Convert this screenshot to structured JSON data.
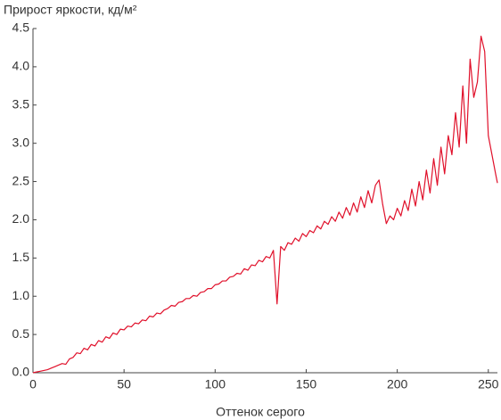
{
  "chart_data": {
    "type": "line",
    "title": "Прирост яркости, кд/м²",
    "x_label": "Оттенок серого",
    "x": [
      0,
      2,
      4,
      6,
      8,
      10,
      12,
      14,
      16,
      18,
      20,
      22,
      24,
      26,
      28,
      30,
      32,
      34,
      36,
      38,
      40,
      42,
      44,
      46,
      48,
      50,
      52,
      54,
      56,
      58,
      60,
      62,
      64,
      66,
      68,
      70,
      72,
      74,
      76,
      78,
      80,
      82,
      84,
      86,
      88,
      90,
      92,
      94,
      96,
      98,
      100,
      102,
      104,
      106,
      108,
      110,
      112,
      114,
      116,
      118,
      120,
      122,
      124,
      126,
      128,
      130,
      132,
      134,
      136,
      138,
      140,
      142,
      144,
      146,
      148,
      150,
      152,
      154,
      156,
      158,
      160,
      162,
      164,
      166,
      168,
      170,
      172,
      174,
      176,
      178,
      180,
      182,
      184,
      186,
      188,
      190,
      192,
      194,
      196,
      198,
      200,
      202,
      204,
      206,
      208,
      210,
      212,
      214,
      216,
      218,
      220,
      222,
      224,
      226,
      228,
      230,
      232,
      234,
      236,
      238,
      240,
      242,
      244,
      246,
      248,
      250,
      252,
      254,
      255
    ],
    "series": [
      {
        "name": "Прирост яркости",
        "color": "#e0102a",
        "values": [
          0,
          0.01,
          0.02,
          0.03,
          0.04,
          0.06,
          0.08,
          0.1,
          0.12,
          0.11,
          0.18,
          0.2,
          0.26,
          0.25,
          0.32,
          0.3,
          0.37,
          0.35,
          0.42,
          0.4,
          0.47,
          0.45,
          0.52,
          0.5,
          0.57,
          0.56,
          0.61,
          0.6,
          0.65,
          0.64,
          0.69,
          0.68,
          0.74,
          0.73,
          0.78,
          0.77,
          0.82,
          0.84,
          0.88,
          0.87,
          0.92,
          0.93,
          0.97,
          0.97,
          1.01,
          1.0,
          1.05,
          1.06,
          1.1,
          1.1,
          1.15,
          1.16,
          1.2,
          1.2,
          1.25,
          1.26,
          1.3,
          1.29,
          1.36,
          1.34,
          1.41,
          1.4,
          1.47,
          1.45,
          1.52,
          1.5,
          1.6,
          0.9,
          1.65,
          1.6,
          1.7,
          1.68,
          1.76,
          1.72,
          1.82,
          1.78,
          1.86,
          1.83,
          1.92,
          1.88,
          1.98,
          1.94,
          2.04,
          1.98,
          2.1,
          2.02,
          2.16,
          2.06,
          2.22,
          2.1,
          2.3,
          2.16,
          2.38,
          2.22,
          2.45,
          2.52,
          2.2,
          1.95,
          2.05,
          2.0,
          2.15,
          2.05,
          2.25,
          2.12,
          2.4,
          2.18,
          2.5,
          2.26,
          2.65,
          2.35,
          2.8,
          2.45,
          2.95,
          2.6,
          3.1,
          2.85,
          3.4,
          2.95,
          3.75,
          3.0,
          4.1,
          3.6,
          3.8,
          4.4,
          4.2,
          3.1,
          2.85,
          2.6,
          2.48
        ]
      }
    ],
    "xlim": [
      0,
      255
    ],
    "xticks": [
      0,
      50,
      100,
      150,
      200,
      250
    ],
    "ylim": [
      0,
      4.5
    ],
    "yticks": [
      {
        "value": 0,
        "label": "0.0"
      },
      0.5,
      {
        "value": 1,
        "label": "1.0"
      },
      1.5,
      {
        "value": 2,
        "label": "2.0"
      },
      2.5,
      {
        "value": 3,
        "label": "3.0"
      },
      3.5,
      {
        "value": 4,
        "label": "4.0"
      },
      4.5
    ],
    "grid": false
  }
}
